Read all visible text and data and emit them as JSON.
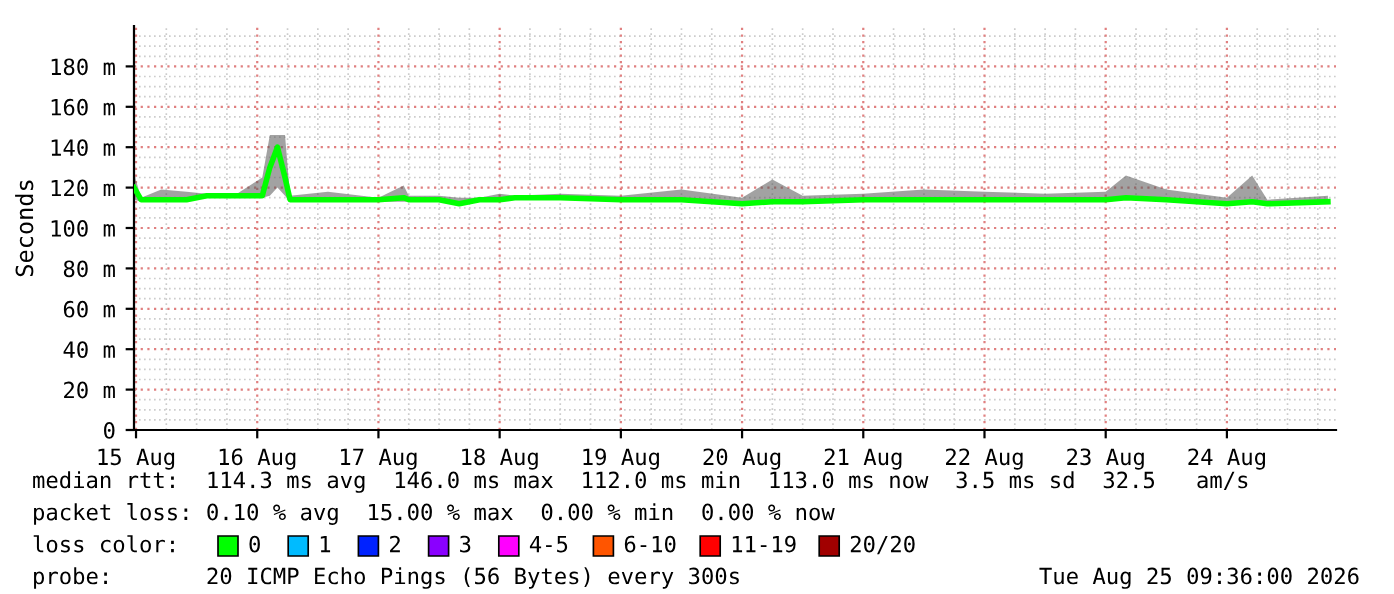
{
  "chart_data": {
    "type": "line",
    "ylabel": "Seconds",
    "xlim": [
      "2026-08-14T23:36",
      "2026-08-24T21:36"
    ],
    "ylim": [
      0,
      200
    ],
    "xticks": [
      {
        "value": "2026-08-15",
        "label": "15 Aug"
      },
      {
        "value": "2026-08-16",
        "label": "16 Aug"
      },
      {
        "value": "2026-08-17",
        "label": "17 Aug"
      },
      {
        "value": "2026-08-18",
        "label": "18 Aug"
      },
      {
        "value": "2026-08-19",
        "label": "19 Aug"
      },
      {
        "value": "2026-08-20",
        "label": "20 Aug"
      },
      {
        "value": "2026-08-21",
        "label": "21 Aug"
      },
      {
        "value": "2026-08-22",
        "label": "22 Aug"
      },
      {
        "value": "2026-08-23",
        "label": "23 Aug"
      },
      {
        "value": "2026-08-24",
        "label": "24 Aug"
      }
    ],
    "yticks": [
      0,
      {
        "value": 20,
        "label": "20 m"
      },
      {
        "value": 40,
        "label": "40 m"
      },
      {
        "value": 60,
        "label": "60 m"
      },
      {
        "value": 80,
        "label": "80 m"
      },
      {
        "value": 100,
        "label": "100 m"
      },
      {
        "value": 120,
        "label": "120 m"
      },
      {
        "value": 140,
        "label": "140 m"
      },
      {
        "value": 160,
        "label": "160 m"
      },
      {
        "value": 180,
        "label": "180 m"
      }
    ],
    "grid": true,
    "legend": "bottom",
    "legend_title": "loss color:",
    "x": [
      "2026-08-14T23:36",
      "2026-08-15T01:00",
      "2026-08-15T05:00",
      "2026-08-15T10:00",
      "2026-08-15T14:00",
      "2026-08-15T20:00",
      "2026-08-16T01:00",
      "2026-08-16T02:30",
      "2026-08-16T04:00",
      "2026-08-16T05:30",
      "2026-08-16T06:30",
      "2026-08-16T14:00",
      "2026-08-17T00:00",
      "2026-08-17T05:00",
      "2026-08-17T06:00",
      "2026-08-17T12:00",
      "2026-08-17T16:00",
      "2026-08-17T20:00",
      "2026-08-18T00:00",
      "2026-08-18T03:00",
      "2026-08-18T12:00",
      "2026-08-19T00:00",
      "2026-08-19T12:00",
      "2026-08-20T00:00",
      "2026-08-20T06:00",
      "2026-08-20T12:00",
      "2026-08-21T00:00",
      "2026-08-21T12:00",
      "2026-08-22T00:00",
      "2026-08-22T12:00",
      "2026-08-23T00:00",
      "2026-08-23T04:00",
      "2026-08-23T12:00",
      "2026-08-24T00:00",
      "2026-08-24T05:00",
      "2026-08-24T08:00",
      "2026-08-24T20:00"
    ],
    "series": [
      {
        "name": "0",
        "color": "#00ff00",
        "values": [
          120,
          114,
          114,
          114,
          116,
          116,
          116,
          130,
          140,
          125,
          114,
          114,
          114,
          115,
          114,
          114,
          112,
          114,
          114,
          115,
          115,
          114,
          114,
          112,
          113,
          113,
          114,
          114,
          114,
          114,
          114,
          115,
          114,
          112,
          113,
          112,
          113
        ],
        "lower": [
          114,
          113,
          113,
          113,
          115,
          115,
          115,
          116,
          120,
          116,
          113,
          113,
          113,
          113,
          113,
          113,
          111,
          113,
          113,
          114,
          114,
          113,
          113,
          111,
          112,
          112,
          113,
          113,
          113,
          113,
          113,
          114,
          113,
          111,
          112,
          111,
          112
        ],
        "upper": [
          127,
          115,
          119,
          118,
          117,
          117,
          125,
          146,
          146,
          146,
          116,
          118,
          115,
          121,
          116,
          116,
          115,
          115,
          117,
          116,
          117,
          116,
          119,
          115,
          124,
          116,
          117,
          119,
          118,
          117,
          118,
          126,
          119,
          115,
          126,
          114,
          116
        ]
      },
      {
        "name": "1",
        "color": "#00bbff",
        "values": [
          null,
          null,
          null,
          null,
          null,
          null,
          null,
          null,
          null,
          null,
          null,
          null,
          null,
          null,
          null,
          null,
          null,
          null,
          null,
          null,
          null,
          null,
          null,
          null,
          null,
          null,
          null,
          null,
          null,
          null,
          null,
          null,
          null,
          null,
          null,
          null,
          null
        ]
      },
      {
        "name": "2",
        "color": "#0022ff",
        "values": [
          null,
          null,
          null,
          null,
          null,
          null,
          null,
          null,
          null,
          null,
          null,
          null,
          null,
          null,
          null,
          null,
          null,
          null,
          null,
          null,
          null,
          null,
          null,
          null,
          null,
          null,
          null,
          null,
          null,
          null,
          null,
          null,
          null,
          null,
          null,
          null,
          null
        ]
      },
      {
        "name": "3",
        "color": "#8a00ff",
        "values": [
          null,
          null,
          null,
          null,
          null,
          null,
          null,
          null,
          null,
          null,
          null,
          null,
          null,
          null,
          null,
          null,
          null,
          null,
          null,
          null,
          null,
          null,
          null,
          null,
          null,
          null,
          null,
          null,
          null,
          null,
          null,
          null,
          null,
          null,
          null,
          null,
          null
        ]
      },
      {
        "name": "4-5",
        "color": "#ff00ff",
        "values": [
          null,
          null,
          null,
          null,
          null,
          null,
          null,
          null,
          null,
          null,
          null,
          null,
          null,
          null,
          null,
          null,
          null,
          null,
          null,
          null,
          null,
          null,
          null,
          null,
          null,
          null,
          null,
          null,
          null,
          null,
          null,
          null,
          null,
          null,
          null,
          null,
          null
        ]
      },
      {
        "name": "6-10",
        "color": "#ff5500",
        "values": [
          null,
          null,
          null,
          null,
          null,
          null,
          null,
          null,
          null,
          null,
          null,
          null,
          null,
          null,
          null,
          null,
          null,
          null,
          null,
          null,
          null,
          null,
          null,
          null,
          null,
          null,
          null,
          null,
          null,
          null,
          null,
          null,
          null,
          null,
          null,
          null,
          null
        ]
      },
      {
        "name": "11-19",
        "color": "#ff0000",
        "values": [
          null,
          null,
          null,
          null,
          null,
          null,
          null,
          null,
          null,
          null,
          null,
          null,
          null,
          null,
          null,
          null,
          null,
          null,
          null,
          null,
          null,
          null,
          null,
          null,
          null,
          null,
          null,
          null,
          null,
          null,
          null,
          null,
          null,
          null,
          null,
          null,
          null
        ]
      },
      {
        "name": "20/20",
        "color": "#a10000",
        "values": [
          null,
          null,
          null,
          null,
          null,
          null,
          null,
          null,
          null,
          null,
          null,
          null,
          null,
          null,
          null,
          null,
          null,
          null,
          null,
          null,
          null,
          null,
          null,
          null,
          null,
          null,
          null,
          null,
          null,
          null,
          null,
          null,
          null,
          null,
          null,
          null,
          null
        ]
      }
    ],
    "annotations": [
      "median rtt:  114.3 ms avg  146.0 ms max  112.0 ms min  113.0 ms now  3.5 ms sd  32.5   am/s",
      "packet loss: 0.10 % avg  15.00 % max  0.00 % min  0.00 % now",
      "probe:       20 ICMP Echo Pings (56 Bytes) every 300s",
      "Tue Aug 25 09:36:00 2026"
    ]
  }
}
